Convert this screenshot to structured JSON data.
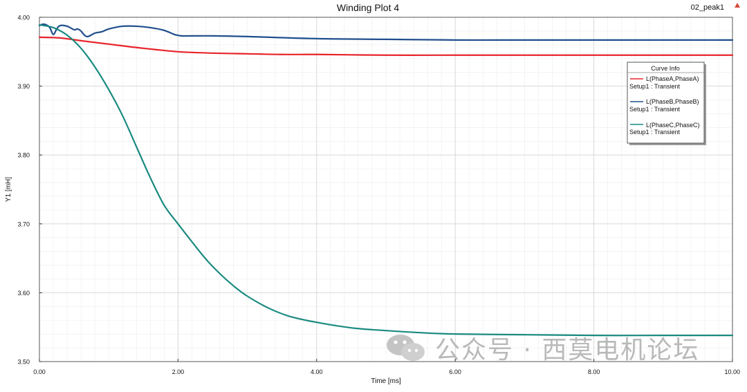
{
  "top_right_label": "02_peak1",
  "watermark_text": "公众号 · 西莫电机论坛",
  "colors": {
    "phaseA": "#e8232a",
    "phaseB": "#1f4e8c",
    "phaseC": "#1a8a80",
    "grid_major": "#d4d4d4",
    "grid_minor": "#ececec",
    "axis": "#333333"
  },
  "chart_data": {
    "type": "line",
    "title": "Winding Plot 4",
    "xlabel": "Time [ms]",
    "ylabel": "Y1 [mH]",
    "xlim": [
      0,
      10
    ],
    "ylim": [
      3.5,
      4.0
    ],
    "xticks": [
      0,
      2,
      4,
      6,
      8,
      10
    ],
    "xtick_labels": [
      "0.00",
      "2.00",
      "4.00",
      "6.00",
      "8.00",
      "10.00"
    ],
    "yticks": [
      3.5,
      3.6,
      3.7,
      3.8,
      3.9,
      4.0
    ],
    "ytick_labels": [
      "3.50",
      "3.60",
      "3.70",
      "3.80",
      "3.90",
      "4.00"
    ],
    "grid": true,
    "legend": {
      "title": "Curve Info",
      "position": "top-right",
      "entries": [
        {
          "name": "L(PhaseA,PhaseA)",
          "sub": "Setup1 : Transient"
        },
        {
          "name": "L(PhaseB,PhaseB)",
          "sub": "Setup1 : Transient"
        },
        {
          "name": "L(PhaseC,PhaseC)",
          "sub": "Setup1 : Transient"
        }
      ]
    },
    "series": [
      {
        "name": "L(PhaseA,PhaseA)",
        "color": "#e8232a",
        "x": [
          0,
          0.3,
          0.6,
          1.0,
          1.5,
          2.0,
          2.5,
          3.0,
          3.5,
          4.0,
          5.0,
          6.0,
          7.0,
          8.0,
          9.0,
          10.0
        ],
        "y": [
          3.971,
          3.97,
          3.966,
          3.961,
          3.955,
          3.95,
          3.948,
          3.947,
          3.946,
          3.946,
          3.945,
          3.945,
          3.945,
          3.945,
          3.945,
          3.945
        ]
      },
      {
        "name": "L(PhaseB,PhaseB)",
        "color": "#1f4e8c",
        "x": [
          0,
          0.05,
          0.1,
          0.15,
          0.2,
          0.25,
          0.3,
          0.4,
          0.5,
          0.55,
          0.6,
          0.65,
          0.7,
          0.8,
          0.9,
          1.0,
          1.2,
          1.4,
          1.6,
          1.8,
          1.95,
          2.05,
          2.2,
          2.5,
          3.0,
          4.0,
          5.0,
          6.0,
          7.0,
          8.0,
          9.0,
          10.0
        ],
        "y": [
          3.988,
          3.99,
          3.989,
          3.985,
          3.975,
          3.983,
          3.988,
          3.987,
          3.982,
          3.983,
          3.98,
          3.974,
          3.972,
          3.977,
          3.979,
          3.983,
          3.987,
          3.987,
          3.985,
          3.981,
          3.975,
          3.973,
          3.973,
          3.973,
          3.972,
          3.969,
          3.968,
          3.967,
          3.967,
          3.967,
          3.967,
          3.967
        ]
      },
      {
        "name": "L(PhaseC,PhaseC)",
        "color": "#1a8a80",
        "x": [
          0,
          0.2,
          0.4,
          0.6,
          0.8,
          1.0,
          1.2,
          1.4,
          1.6,
          1.8,
          2.0,
          2.2,
          2.4,
          2.6,
          2.8,
          3.0,
          3.3,
          3.6,
          4.0,
          4.5,
          5.0,
          5.5,
          6.0,
          7.0,
          8.0,
          9.0,
          10.0
        ],
        "y": [
          3.989,
          3.985,
          3.974,
          3.955,
          3.928,
          3.895,
          3.857,
          3.812,
          3.767,
          3.727,
          3.7,
          3.674,
          3.649,
          3.628,
          3.61,
          3.595,
          3.578,
          3.566,
          3.557,
          3.549,
          3.545,
          3.542,
          3.54,
          3.539,
          3.538,
          3.538,
          3.538
        ]
      }
    ]
  }
}
